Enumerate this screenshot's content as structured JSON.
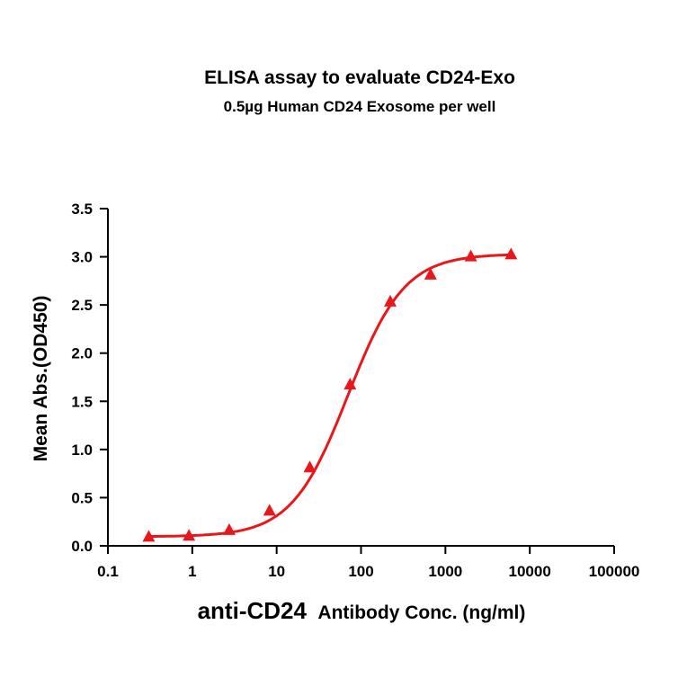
{
  "chart_data": {
    "type": "scatter",
    "title": "ELISA assay to evaluate CD24-Exo",
    "subtitle": "0.5µg Human CD24 Exosome per well",
    "xlabel_main": "anti-CD24",
    "xlabel_rest": "Antibody Conc. (ng/ml)",
    "ylabel": "Mean Abs.(OD450)",
    "xscale": "log",
    "xlim": [
      0.1,
      100000
    ],
    "ylim": [
      0.0,
      3.5
    ],
    "xticks": [
      0.1,
      1,
      10,
      100,
      1000,
      10000,
      100000
    ],
    "xtick_labels": [
      "0.1",
      "1",
      "10",
      "100",
      "1000",
      "10000",
      "100000"
    ],
    "yticks": [
      0.0,
      0.5,
      1.0,
      1.5,
      2.0,
      2.5,
      3.0,
      3.5
    ],
    "ytick_labels": [
      "0.0",
      "0.5",
      "1.0",
      "1.5",
      "2.0",
      "2.5",
      "3.0",
      "3.5"
    ],
    "grid": false,
    "marker": "triangle",
    "color": "#e8171c",
    "series": [
      {
        "x": [
          0.305,
          0.914,
          2.74,
          8.23,
          24.7,
          74.1,
          222,
          667,
          2000,
          6000
        ],
        "y": [
          0.09,
          0.1,
          0.16,
          0.36,
          0.81,
          1.67,
          2.53,
          2.81,
          3.0,
          3.02
        ]
      }
    ],
    "fit": {
      "model": "4PL",
      "bottom": 0.095,
      "top": 3.03,
      "ec50": 70,
      "hill": 1.3
    }
  }
}
